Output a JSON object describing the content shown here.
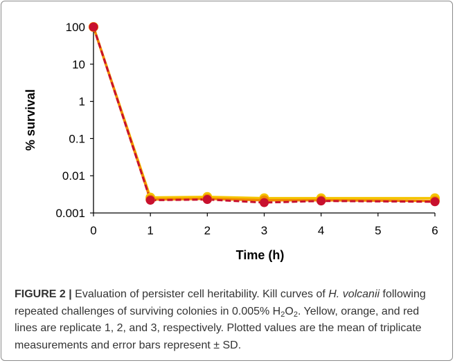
{
  "chart_data": {
    "type": "line",
    "title": "",
    "xlabel": "Time (h)",
    "ylabel": "% survival",
    "y_scale": "log",
    "ylim": [
      0.001,
      100
    ],
    "xlim": [
      0,
      6
    ],
    "x_ticks": [
      "0",
      "1",
      "2",
      "3",
      "4",
      "5",
      "6"
    ],
    "y_ticks": [
      "100",
      "10",
      "1",
      "0.1",
      "0.01",
      "0.001"
    ],
    "grid": false,
    "legend": "none",
    "series": [
      {
        "color": "#f5c400",
        "dash": "solid",
        "points": [
          [
            0,
            100
          ],
          [
            1,
            0.0026
          ],
          [
            2,
            0.0027
          ],
          [
            3,
            0.0025
          ],
          [
            4,
            0.0025
          ],
          [
            6,
            0.0025
          ]
        ]
      },
      {
        "color": "#f08a00",
        "dash": "solid",
        "points": [
          [
            0,
            100
          ],
          [
            1,
            0.0023
          ],
          [
            2,
            0.0024
          ],
          [
            3,
            0.0022
          ],
          [
            4,
            0.0022
          ],
          [
            6,
            0.0021
          ]
        ]
      },
      {
        "color": "#c8102e",
        "dash": "dashed",
        "points": [
          [
            0,
            100
          ],
          [
            1,
            0.0022
          ],
          [
            2,
            0.0023
          ],
          [
            3,
            0.0019
          ],
          [
            4,
            0.0021
          ],
          [
            6,
            0.002
          ]
        ]
      }
    ]
  },
  "caption": {
    "figure_label": "FIGURE 2 |",
    "line1_text": " Evaluation of persister cell heritability. Kill curves of ",
    "species": "H. volcanii",
    "line2_text": " following repeated challenges of surviving colonies in 0.005% H",
    "sub1": "2",
    "o_text": "O",
    "sub2": "2",
    "rest": ". Yellow, orange, and red lines are replicate 1, 2, and 3, respectively. Plotted values are the mean of triplicate measurements and error bars represent ± SD."
  }
}
